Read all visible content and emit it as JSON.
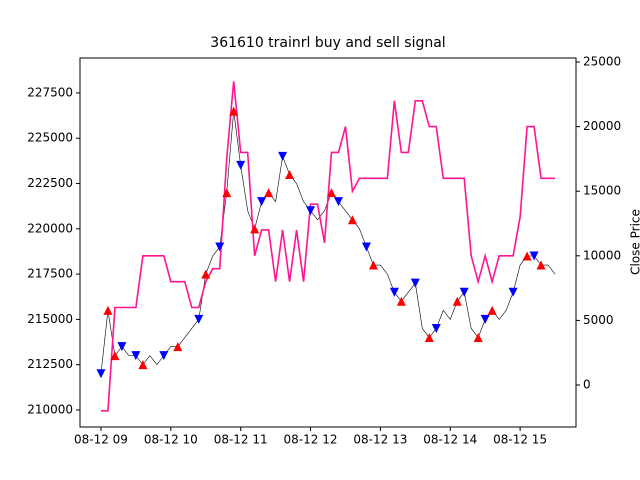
{
  "chart_data": {
    "type": "line",
    "title": "361610 trainrl buy and sell signal",
    "y2label": "Close Price",
    "xlim": [
      8.7,
      15.8
    ],
    "xticks": [
      {
        "value": 9,
        "label": "08-12 09"
      },
      {
        "value": 10,
        "label": "08-12 10"
      },
      {
        "value": 11,
        "label": "08-12 11"
      },
      {
        "value": 12,
        "label": "08-12 12"
      },
      {
        "value": 13,
        "label": "08-12 13"
      },
      {
        "value": 14,
        "label": "08-12 14"
      },
      {
        "value": 15,
        "label": "08-12 15"
      }
    ],
    "ylim": [
      209060,
      229430
    ],
    "yticks": [
      210000,
      212500,
      215000,
      217500,
      220000,
      222500,
      225000,
      227500
    ],
    "y2lim": [
      -3250,
      25310
    ],
    "y2ticks": [
      0,
      5000,
      10000,
      15000,
      20000,
      25000
    ],
    "series": [
      {
        "kind": "line",
        "axis": "y",
        "color": "#000000",
        "width": 0.6,
        "x": [
          9.0,
          9.1,
          9.2,
          9.3,
          9.4,
          9.5,
          9.6,
          9.7,
          9.8,
          9.9,
          10.0,
          10.1,
          10.2,
          10.3,
          10.4,
          10.5,
          10.6,
          10.7,
          10.8,
          10.9,
          11.0,
          11.1,
          11.2,
          11.3,
          11.4,
          11.5,
          11.6,
          11.7,
          11.8,
          11.9,
          12.0,
          12.1,
          12.2,
          12.3,
          12.4,
          12.5,
          12.6,
          12.7,
          12.8,
          12.9,
          13.0,
          13.1,
          13.2,
          13.3,
          13.4,
          13.5,
          13.6,
          13.7,
          13.8,
          13.9,
          14.0,
          14.1,
          14.2,
          14.3,
          14.4,
          14.5,
          14.6,
          14.7,
          14.8,
          14.9,
          15.0,
          15.1,
          15.2,
          15.3,
          15.4,
          15.5
        ],
        "values": [
          212000,
          215500,
          213000,
          213500,
          213000,
          213000,
          212500,
          213000,
          212500,
          213000,
          213500,
          213500,
          214000,
          214500,
          215000,
          217500,
          218500,
          219000,
          222000,
          226500,
          223500,
          221000,
          220000,
          221500,
          222000,
          221500,
          224000,
          223000,
          222500,
          221500,
          221000,
          220500,
          221000,
          222000,
          221500,
          221000,
          220500,
          220000,
          219000,
          218000,
          218000,
          217500,
          216500,
          216000,
          216500,
          217000,
          214500,
          214000,
          214500,
          215500,
          215000,
          216000,
          216500,
          214500,
          214000,
          215000,
          215500,
          215000,
          215500,
          216500,
          218000,
          218500,
          218500,
          218000,
          218000,
          217500
        ]
      },
      {
        "kind": "line",
        "axis": "y2",
        "color": "#ff1493",
        "width": 1.6,
        "x": [
          9.0,
          9.1,
          9.2,
          9.3,
          9.4,
          9.5,
          9.6,
          9.7,
          9.8,
          9.9,
          10.0,
          10.1,
          10.2,
          10.3,
          10.4,
          10.5,
          10.6,
          10.7,
          10.8,
          10.9,
          11.0,
          11.1,
          11.2,
          11.3,
          11.4,
          11.5,
          11.6,
          11.7,
          11.8,
          11.9,
          12.0,
          12.1,
          12.2,
          12.3,
          12.4,
          12.5,
          12.6,
          12.7,
          12.8,
          12.9,
          13.0,
          13.1,
          13.2,
          13.3,
          13.4,
          13.5,
          13.6,
          13.7,
          13.8,
          13.9,
          14.0,
          14.1,
          14.2,
          14.3,
          14.4,
          14.5,
          14.6,
          14.7,
          14.8,
          14.9,
          15.0,
          15.1,
          15.2,
          15.3,
          15.4,
          15.5
        ],
        "values": [
          -2000,
          -2000,
          6000,
          6000,
          6000,
          6000,
          10000,
          10000,
          10000,
          10000,
          8000,
          8000,
          8000,
          6000,
          6000,
          8000,
          9000,
          9000,
          17500,
          23500,
          18000,
          18000,
          10000,
          12000,
          12000,
          8000,
          12000,
          8000,
          12000,
          8000,
          14000,
          14000,
          11000,
          18000,
          18000,
          20000,
          15000,
          16000,
          16000,
          16000,
          16000,
          16000,
          22000,
          18000,
          18000,
          22000,
          22000,
          20000,
          20000,
          16000,
          16000,
          16000,
          16000,
          10000,
          8000,
          10000,
          8000,
          10000,
          10000,
          10000,
          13000,
          20000,
          20000,
          16000,
          16000,
          16000
        ]
      },
      {
        "kind": "scatter",
        "axis": "y",
        "marker": "up",
        "color": "#ff0000",
        "x": [
          9.1,
          9.2,
          9.6,
          10.1,
          10.5,
          10.8,
          10.9,
          11.2,
          11.4,
          11.7,
          12.3,
          12.6,
          12.9,
          13.3,
          13.7,
          14.1,
          14.4,
          14.6,
          15.1,
          15.3
        ],
        "values": [
          215500,
          213000,
          212500,
          213500,
          217500,
          222000,
          226500,
          220000,
          222000,
          223000,
          222000,
          220500,
          218000,
          216000,
          214000,
          216000,
          214000,
          215500,
          218500,
          218000
        ]
      },
      {
        "kind": "scatter",
        "axis": "y",
        "marker": "down",
        "color": "#0000ff",
        "x": [
          9.0,
          9.3,
          9.5,
          9.9,
          10.4,
          10.7,
          11.0,
          11.3,
          11.6,
          12.0,
          12.4,
          12.8,
          13.2,
          13.5,
          13.8,
          14.2,
          14.5,
          14.9,
          15.2
        ],
        "values": [
          212000,
          213500,
          213000,
          213000,
          215000,
          219000,
          223500,
          221500,
          224000,
          221000,
          221500,
          219000,
          216500,
          217000,
          214500,
          216500,
          215000,
          216500,
          218500
        ]
      }
    ]
  }
}
